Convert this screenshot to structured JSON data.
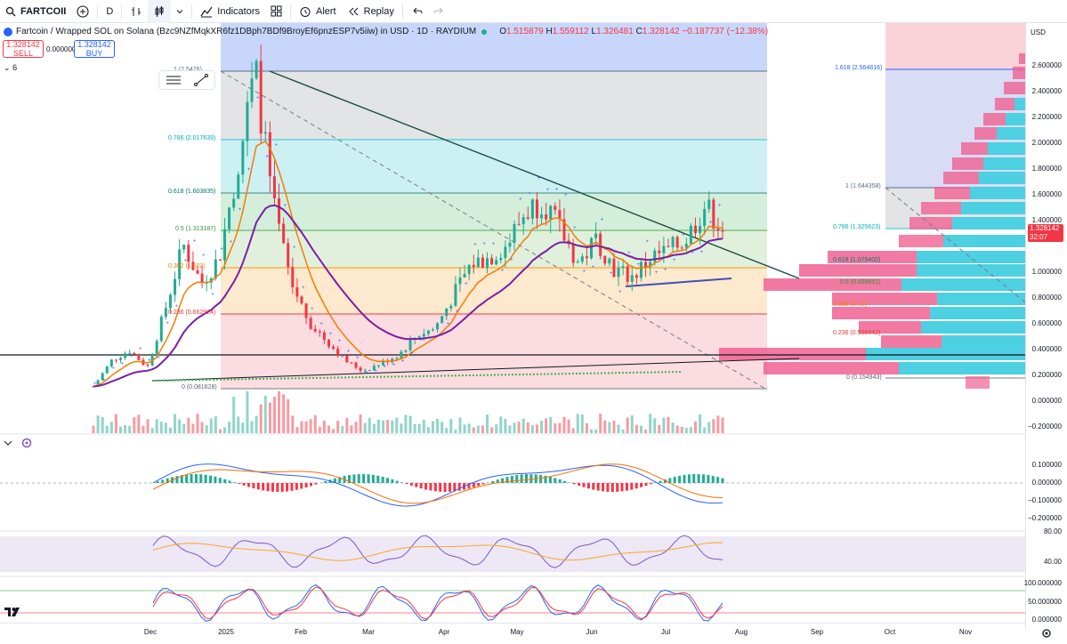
{
  "toolbar": {
    "symbol": "FARTCOII",
    "interval": "D",
    "indicators_label": "Indicators",
    "alert_label": "Alert",
    "replay_label": "Replay"
  },
  "legend": {
    "title": "Fartcoin / Wrapped SOL on Solana (Bzc9NZfMqkXR6fz1DBph7BDf9BroyEf6pnzESP7v5iiw) in USD · 1D · RAYDIUM",
    "open": "1.515879",
    "high": "1.559112",
    "low": "1.326481",
    "close": "1.328142",
    "change": "−0.187737 (−12.38%)"
  },
  "trade": {
    "sell_price": "1.328142",
    "sell_label": "SELL",
    "spread": "0.000000",
    "buy_price": "1.328142",
    "buy_label": "BUY",
    "pane_count": "6"
  },
  "price_axis": {
    "currency": "USD",
    "labels": [
      "2.600000",
      "2.400000",
      "2.200000",
      "2.000000",
      "1.800000",
      "1.600000",
      "1.400000",
      "1.000000",
      "0.800000",
      "0.600000",
      "0.400000",
      "0.200000",
      "0.000000",
      "−0.200000"
    ],
    "current_price": "1.328142",
    "countdown": "32:07",
    "macd_labels": [
      "0.100000",
      "0.000000",
      "−0.100000",
      "−0.200000"
    ],
    "rsi_labels": [
      "80.00",
      "40.00"
    ],
    "stoch_labels": [
      "100.000000",
      "50.000000",
      "0.000000"
    ]
  },
  "time_axis": {
    "labels": [
      "Dec",
      "2025",
      "Feb",
      "Mar",
      "Apr",
      "May",
      "Jun",
      "Jul",
      "Aug",
      "Sep",
      "Oct",
      "Nov"
    ]
  },
  "fib_left": [
    "1 (2.5476)",
    "0.786 (2.017639)",
    "0.618 (1.603835)",
    "0.5 (1.313187)",
    "0.382 (1.022)",
    "0.236 (0.662924)",
    "0 (0.081628)"
  ],
  "fib_right": [
    "1.618 (2.564816)",
    "1 (1.644358)",
    "0.786 (1.325623)",
    "0.618 (1.075402)",
    "0.5 (0.899651)",
    "0.382 (0.72)",
    "0.236 (0.506442)",
    "0 (0.154943)"
  ],
  "colors": {
    "up": "#22ab94",
    "down": "#f23645",
    "ema_fast": "#f57c00",
    "ema_slow": "#7b1fa2",
    "accent": "#2962ff"
  },
  "chart_data": {
    "type": "candlestick",
    "x_labels": [
      "Dec",
      "2025",
      "Feb",
      "Mar",
      "Apr",
      "May",
      "Jun",
      "Jul",
      "Aug"
    ],
    "close_path": [
      0.1,
      0.3,
      0.38,
      0.25,
      0.7,
      1.2,
      0.9,
      1.1,
      1.8,
      2.55,
      1.5,
      0.9,
      0.6,
      0.45,
      0.3,
      0.22,
      0.28,
      0.35,
      0.5,
      0.55,
      0.8,
      1.05,
      1.1,
      1.2,
      1.45,
      1.55,
      1.3,
      1.05,
      1.25,
      1.0,
      0.95,
      1.1,
      1.15,
      1.25,
      1.5,
      1.33
    ],
    "ylim": [
      -0.2,
      2.7
    ]
  }
}
